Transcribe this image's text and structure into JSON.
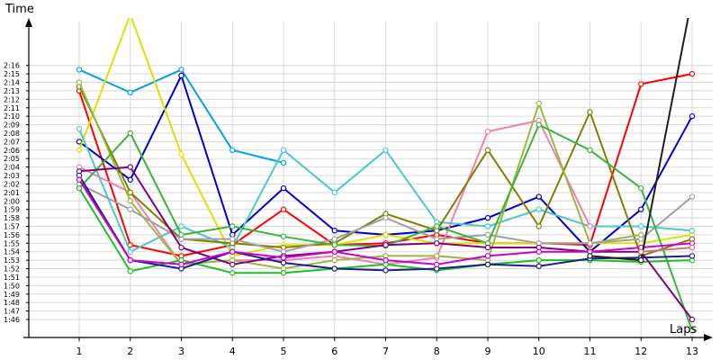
{
  "chart_data": {
    "type": "line",
    "title": "",
    "ylabel": "Time",
    "xlabel": "Laps",
    "grid": true,
    "legend": "none",
    "x": [
      1,
      2,
      3,
      4,
      5,
      6,
      7,
      8,
      9,
      10,
      11,
      12,
      13
    ],
    "x_ticks": [
      "1",
      "2",
      "3",
      "4",
      "5",
      "6",
      "7",
      "8",
      "9",
      "10",
      "11",
      "12",
      "13"
    ],
    "y_ticks": [
      "1:46",
      "1:47",
      "1:48",
      "1:49",
      "1:50",
      "1:51",
      "1:52",
      "1:53",
      "1:54",
      "1:55",
      "1:56",
      "1:57",
      "1:58",
      "1:59",
      "2:00",
      "2:01",
      "2:02",
      "2:03",
      "2:04",
      "2:05",
      "2:06",
      "2:07",
      "2:08",
      "2:09",
      "2:10",
      "2:11",
      "2:12",
      "2:13",
      "2:14",
      "2:15",
      "2:16"
    ],
    "y_tick_seconds": [
      106,
      107,
      108,
      109,
      110,
      111,
      112,
      113,
      114,
      115,
      116,
      117,
      118,
      119,
      120,
      121,
      122,
      123,
      124,
      125,
      126,
      127,
      128,
      129,
      130,
      131,
      132,
      133,
      134,
      135,
      136
    ],
    "ylim": [
      104.3,
      141.1
    ],
    "series": [
      {
        "color": "#ff0000",
        "values": [
          133,
          114.8,
          113.5,
          114.8,
          119,
          114.8,
          115,
          116,
          115,
          115,
          114.8,
          133.8,
          135
        ]
      },
      {
        "color": "#00a2e8",
        "values": [
          135.5,
          132.8,
          135.5,
          126,
          124.5,
          null,
          null,
          null,
          null,
          null,
          null,
          null,
          null
        ]
      },
      {
        "color": "#0000cc",
        "values": [
          127,
          122.5,
          134.8,
          116,
          121.5,
          116.5,
          116,
          116.5,
          118,
          120.5,
          114,
          119,
          130
        ]
      },
      {
        "color": "#e0e000",
        "values": [
          126,
          142,
          125.5,
          113.5,
          114.8,
          114.8,
          116,
          115,
          115,
          115,
          115,
          115,
          116
        ]
      },
      {
        "color": "#4bc9c9",
        "values": [
          128.5,
          114,
          117,
          114.5,
          126,
          121,
          126,
          117.5,
          117,
          119,
          117,
          117,
          116.5
        ]
      },
      {
        "color": "#f080b0",
        "values": [
          124,
          121,
          112.5,
          113,
          113,
          113.5,
          112.5,
          113.3,
          128.2,
          129.5,
          117,
          null,
          null
        ]
      },
      {
        "color": "#808000",
        "values": [
          133.5,
          121,
          115.5,
          115,
          114.5,
          115,
          118.5,
          116.5,
          126,
          117,
          130.5,
          113.5,
          115.5
        ]
      },
      {
        "color": "#9ab840",
        "values": [
          134,
          120,
          112.5,
          113,
          112,
          113,
          113.5,
          113.5,
          113,
          131.5,
          115,
          116,
          null
        ]
      },
      {
        "color": "#a0a0a0",
        "values": [
          122,
          119,
          115.5,
          115.5,
          114,
          115.5,
          118,
          115.5,
          116,
          115,
          115,
          115.5,
          120.5
        ]
      },
      {
        "color": "#3cb33c",
        "values": [
          121.5,
          128,
          116,
          117,
          115.8,
          114.8,
          114.7,
          117,
          115,
          129,
          126,
          121.5,
          104.7
        ]
      },
      {
        "color": "#20c020",
        "values": [
          121.5,
          111.7,
          113,
          111.5,
          111.5,
          112,
          112.5,
          111.8,
          112.5,
          113,
          113,
          112.8,
          113
        ]
      },
      {
        "color": "#800080",
        "values": [
          123.5,
          124,
          114.5,
          112.5,
          113.5,
          114,
          114.8,
          115,
          114.5,
          114.5,
          114,
          114,
          106
        ]
      },
      {
        "color": "#1e1e8c",
        "values": [
          123,
          113,
          112,
          114,
          112.7,
          112,
          111.8,
          112,
          112.5,
          112.3,
          113.2,
          113.3,
          113.5
        ]
      },
      {
        "color": "#cc00cc",
        "values": [
          122.5,
          113,
          112.5,
          114,
          113.3,
          114,
          113,
          112.5,
          113.5,
          114,
          114,
          114.5,
          115
        ]
      },
      {
        "color": "#202020",
        "values": [
          null,
          null,
          null,
          null,
          null,
          null,
          null,
          null,
          null,
          null,
          113.5,
          113,
          144
        ]
      },
      {
        "color": "#c87878",
        "values": [
          null,
          null,
          null,
          null,
          null,
          null,
          null,
          null,
          null,
          null,
          null,
          114,
          114.5
        ]
      }
    ]
  }
}
